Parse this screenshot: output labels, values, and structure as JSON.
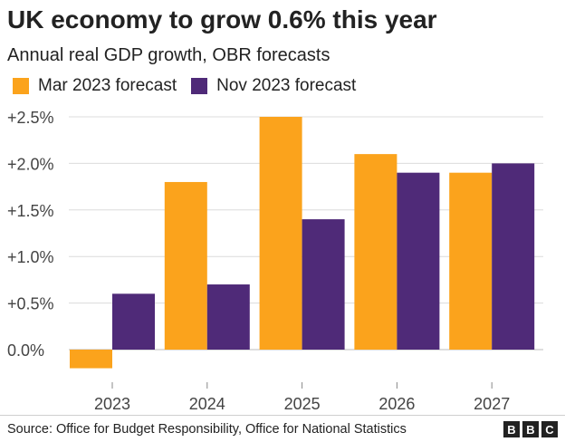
{
  "chart_data": {
    "type": "bar",
    "title": "UK economy to grow 0.6% this year",
    "subtitle": "Annual real GDP growth, OBR forecasts",
    "categories": [
      "2023",
      "2024",
      "2025",
      "2026",
      "2027"
    ],
    "series": [
      {
        "name": "Mar 2023 forecast",
        "color": "#fba31c",
        "values": [
          -0.2,
          1.8,
          2.5,
          2.1,
          1.9
        ]
      },
      {
        "name": "Nov 2023 forecast",
        "color": "#4f2a78",
        "values": [
          0.6,
          0.7,
          1.4,
          1.9,
          2.0
        ]
      }
    ],
    "ylim": [
      -0.2,
      2.5
    ],
    "yticks": [
      0,
      0.5,
      1.0,
      1.5,
      2.0,
      2.5
    ],
    "ytick_labels": [
      "0.0%",
      "+0.5%",
      "+1.0%",
      "+1.5%",
      "+2.0%",
      "+2.5%"
    ],
    "xlabel": "",
    "ylabel": "",
    "grid": true,
    "legend": "top-left"
  },
  "footer": {
    "source": "Source: Office for Budget Responsibility, Office for National Statistics",
    "logo_letters": [
      "B",
      "B",
      "C"
    ]
  }
}
